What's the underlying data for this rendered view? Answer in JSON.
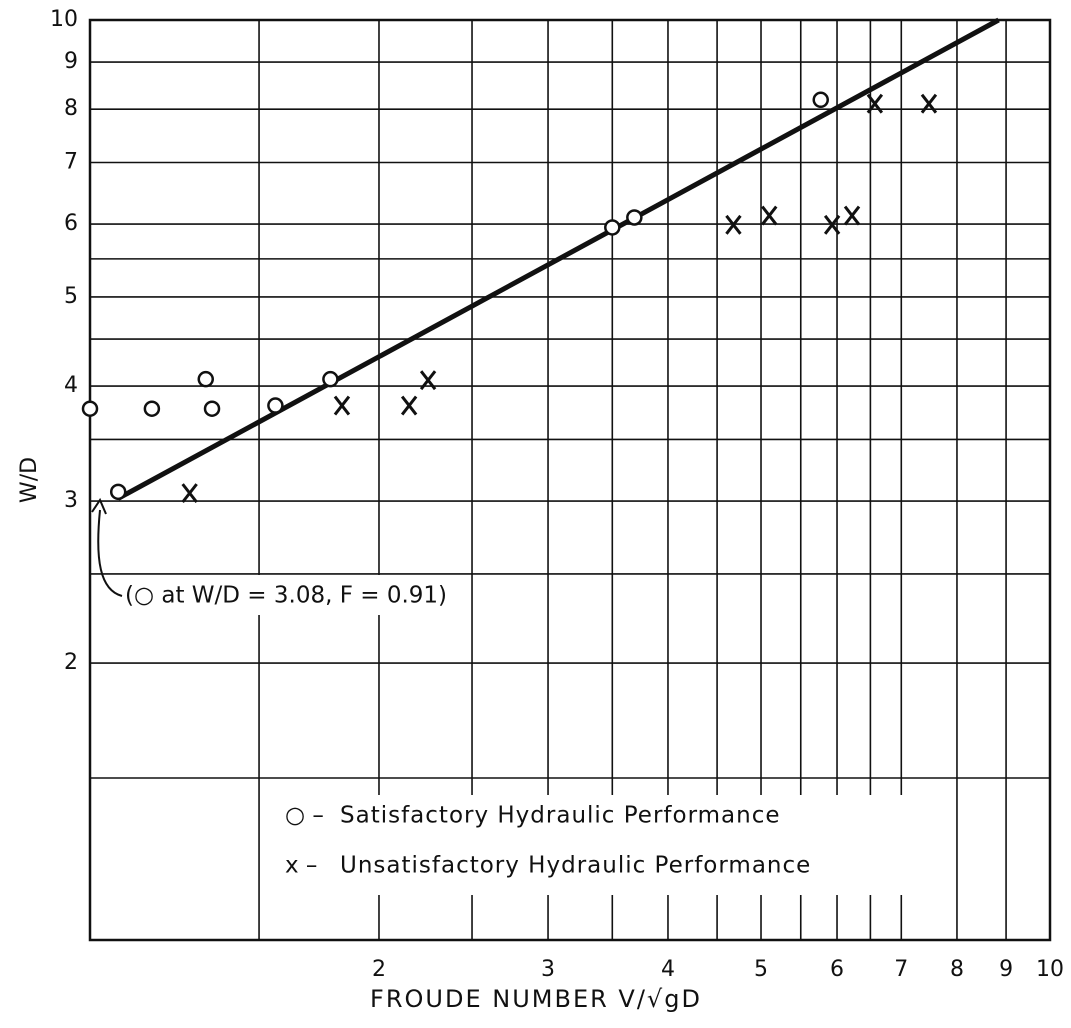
{
  "chart_data": {
    "type": "scatter",
    "xlabel": "FROUDE NUMBER    V/√gD",
    "ylabel": "W/D",
    "xlog": true,
    "ylog": true,
    "grid": true,
    "xlim": [
      1,
      10
    ],
    "ylim": [
      1,
      10
    ],
    "xticks": [
      2,
      3,
      4,
      5,
      6,
      7,
      8,
      9,
      10
    ],
    "yticks": [
      2,
      3,
      4,
      5,
      6,
      7,
      8,
      9,
      10
    ],
    "xgrid_minor": [
      1.5,
      2.5,
      3.5,
      4.5,
      5.5,
      6.5
    ],
    "ygrid_minor": [
      1.5,
      2.5,
      3.5,
      4.5,
      5.5
    ],
    "series": [
      {
        "name": "Satisfactory Hydraulic Performance",
        "marker": "o",
        "color": "#111111",
        "x": [
          1.0,
          1.07,
          1.16,
          1.32,
          1.34,
          1.56,
          1.78,
          3.5,
          3.69,
          5.77
        ],
        "values": [
          3.78,
          3.07,
          3.78,
          4.07,
          3.78,
          3.81,
          4.07,
          5.95,
          6.1,
          8.19
        ]
      },
      {
        "name": "Unsatisfactory Hydraulic Performance",
        "marker": "x",
        "color": "#111111",
        "x": [
          1.27,
          1.83,
          2.15,
          2.25,
          4.68,
          5.1,
          5.93,
          6.22,
          6.57,
          7.48
        ],
        "values": [
          3.06,
          3.81,
          3.81,
          4.06,
          5.99,
          6.13,
          5.99,
          6.13,
          8.11,
          8.11
        ]
      }
    ],
    "fit_line": {
      "x": [
        1.07,
        8.84
      ],
      "y": [
        3.02,
        10
      ]
    },
    "annotation": "(○ at W/D = 3.08, F = 0.91)",
    "legend_markers": [
      "○ –",
      "x –"
    ]
  }
}
